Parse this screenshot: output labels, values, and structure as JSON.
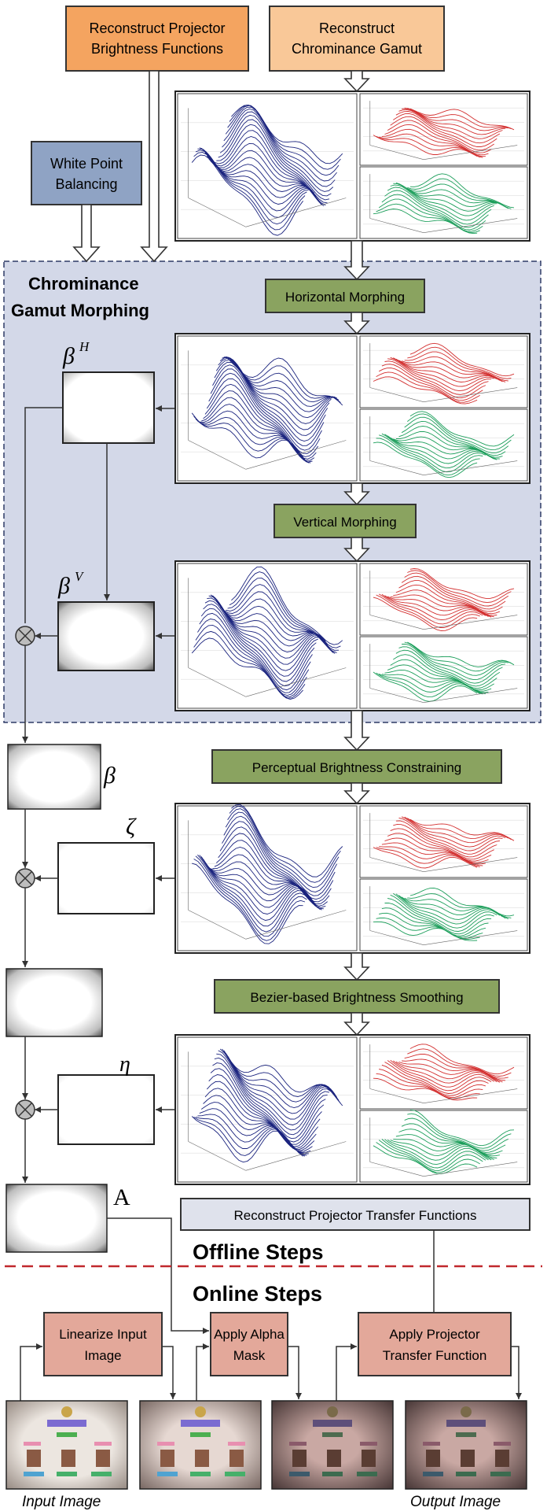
{
  "top": {
    "brightness_functions": [
      "Reconstruct Projector",
      "Brightness Functions"
    ],
    "chrominance_gamut": [
      "Reconstruct",
      "Chrominance Gamut"
    ],
    "white_point": [
      "White Point",
      "Balancing"
    ]
  },
  "morph_region": {
    "title": [
      "Chrominance",
      "Gamut Morphing"
    ],
    "horizontal": "Horizontal Morphing",
    "vertical": "Vertical Morphing"
  },
  "steps": {
    "perceptual": "Perceptual Brightness Constraining",
    "bezier": "Bezier-based Brightness Smoothing",
    "transfer": "Reconstruct Projector Transfer Functions"
  },
  "symbols": {
    "beta_h": "β",
    "beta_h_sup": "H",
    "beta_v": "β",
    "beta_v_sup": "V",
    "beta": "β",
    "zeta": "ζ",
    "eta": "η",
    "alpha": "A"
  },
  "sections": {
    "offline": "Offline Steps",
    "online": "Online Steps"
  },
  "online": {
    "linearize": [
      "Linearize Input",
      "Image"
    ],
    "alpha_mask": [
      "Apply Alpha",
      "Mask"
    ],
    "transfer_fn": [
      "Apply Projector",
      "Transfer Function"
    ],
    "input_caption": "Input Image",
    "output_caption": "Output Image"
  },
  "colors": {
    "orange_dark": "#f4a460",
    "orange_light": "#f9c898",
    "blue_box": "#8fa3c4",
    "region_bg": "#d3d8e8",
    "green_box": "#8aa360",
    "salmon_box": "#e3a89a",
    "transfer_box": "#dfe2ec",
    "divider": "#c0282d",
    "mesh_blue": "#1a237e",
    "mesh_red": "#d32f2f",
    "mesh_green": "#1b9e5a"
  }
}
